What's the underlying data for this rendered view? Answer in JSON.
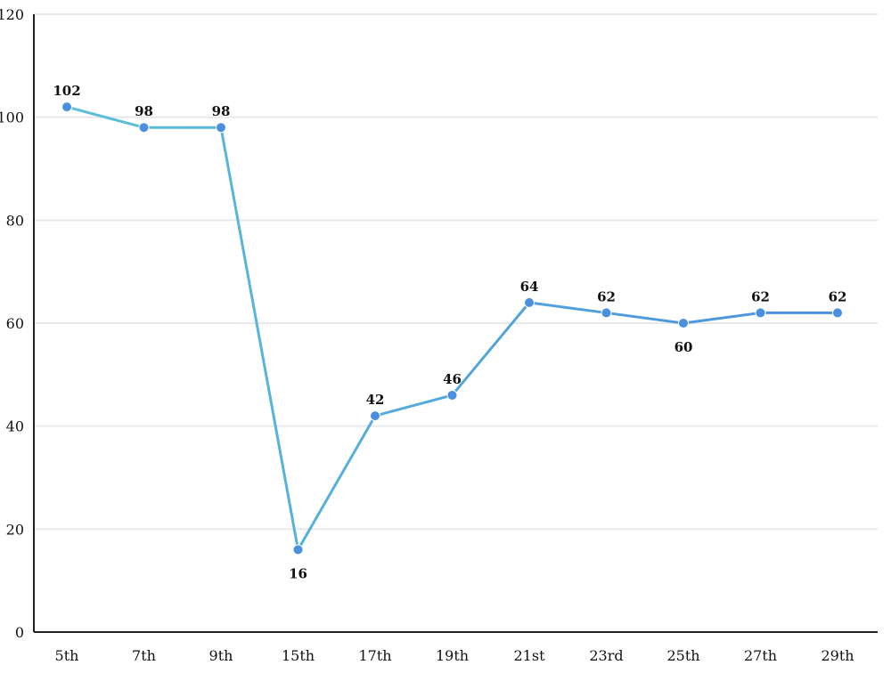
{
  "chart_data": {
    "type": "line",
    "title": "",
    "xlabel": "",
    "ylabel": "",
    "categories": [
      "5th",
      "7th",
      "9th",
      "15th",
      "17th",
      "19th",
      "21st",
      "23rd",
      "25th",
      "27th",
      "29th"
    ],
    "series": [
      {
        "values": [
          102,
          98,
          98,
          16,
          42,
          46,
          64,
          62,
          60,
          62,
          62
        ]
      }
    ],
    "data_labels": [
      "102",
      "98",
      "98",
      "16",
      "42",
      "46",
      "64",
      "62",
      "60",
      "62",
      "62"
    ],
    "ylim": [
      0,
      120
    ],
    "yticks": [
      0,
      20,
      40,
      60,
      80,
      100,
      120
    ],
    "grid": true,
    "legend": "none",
    "colors": {
      "line_start": "#5bc0d8",
      "line_end": "#4a8fe0",
      "point": "#4a8fe0"
    }
  }
}
